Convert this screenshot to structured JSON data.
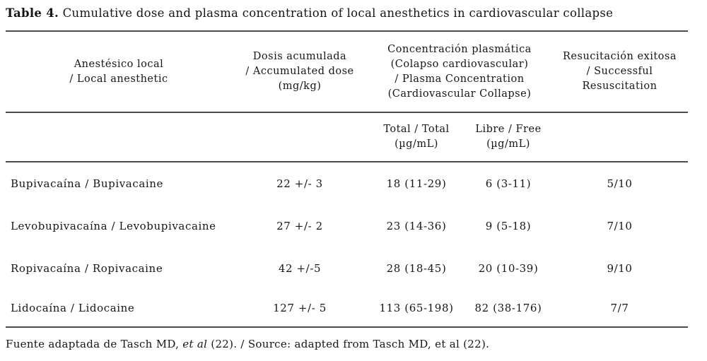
{
  "title": {
    "prefix": "Table 4.",
    "text": " Cumulative dose and plasma concentration of local anesthetics in cardiovascular collapse"
  },
  "table": {
    "headers": {
      "anesthetic": "Anestésico local\n/ Local anesthetic",
      "dose": "Dosis acumulada\n/ Accumulated dose\n(mg/kg)",
      "plasma": "Concentración plasmática\n(Colapso cardiovascular)\n/ Plasma Concentration\n(Cardiovascular Collapse)",
      "resuscitation": "Resucitación exitosa\n/ Successful\nResuscitation"
    },
    "subheaders": {
      "total": "Total / Total\n(µg/mL)",
      "free": "Libre / Free\n(µg/mL)"
    },
    "rows": [
      {
        "name": "Bupivacaína / Bupivacaine",
        "dose": "22 +/- 3",
        "total": "18 (11-29)",
        "free": "6 (3-11)",
        "resuscitation": "5/10"
      },
      {
        "name": "Levobupivacaína / Levobupivacaine",
        "dose": "27 +/- 2",
        "total": "23 (14-36)",
        "free": "9 (5-18)",
        "resuscitation": "7/10"
      },
      {
        "name": "Ropivacaína / Ropivacaine",
        "dose": "42 +/-5",
        "total": "28 (18-45)",
        "free": "20 (10-39)",
        "resuscitation": "9/10"
      },
      {
        "name": "Lidocaína / Lidocaine",
        "dose": "127 +/- 5",
        "total": "113 (65-198)",
        "free": "82 (38-176)",
        "resuscitation": "7/7"
      }
    ]
  },
  "footer": {
    "part1": "Fuente adaptada de Tasch MD, ",
    "italic": "et al",
    "part2": " (22). / Source: adapted from Tasch MD, et al (22)."
  },
  "colors": {
    "text": "#161616",
    "rule": "#4b4b4b",
    "background": "#ffffff"
  }
}
